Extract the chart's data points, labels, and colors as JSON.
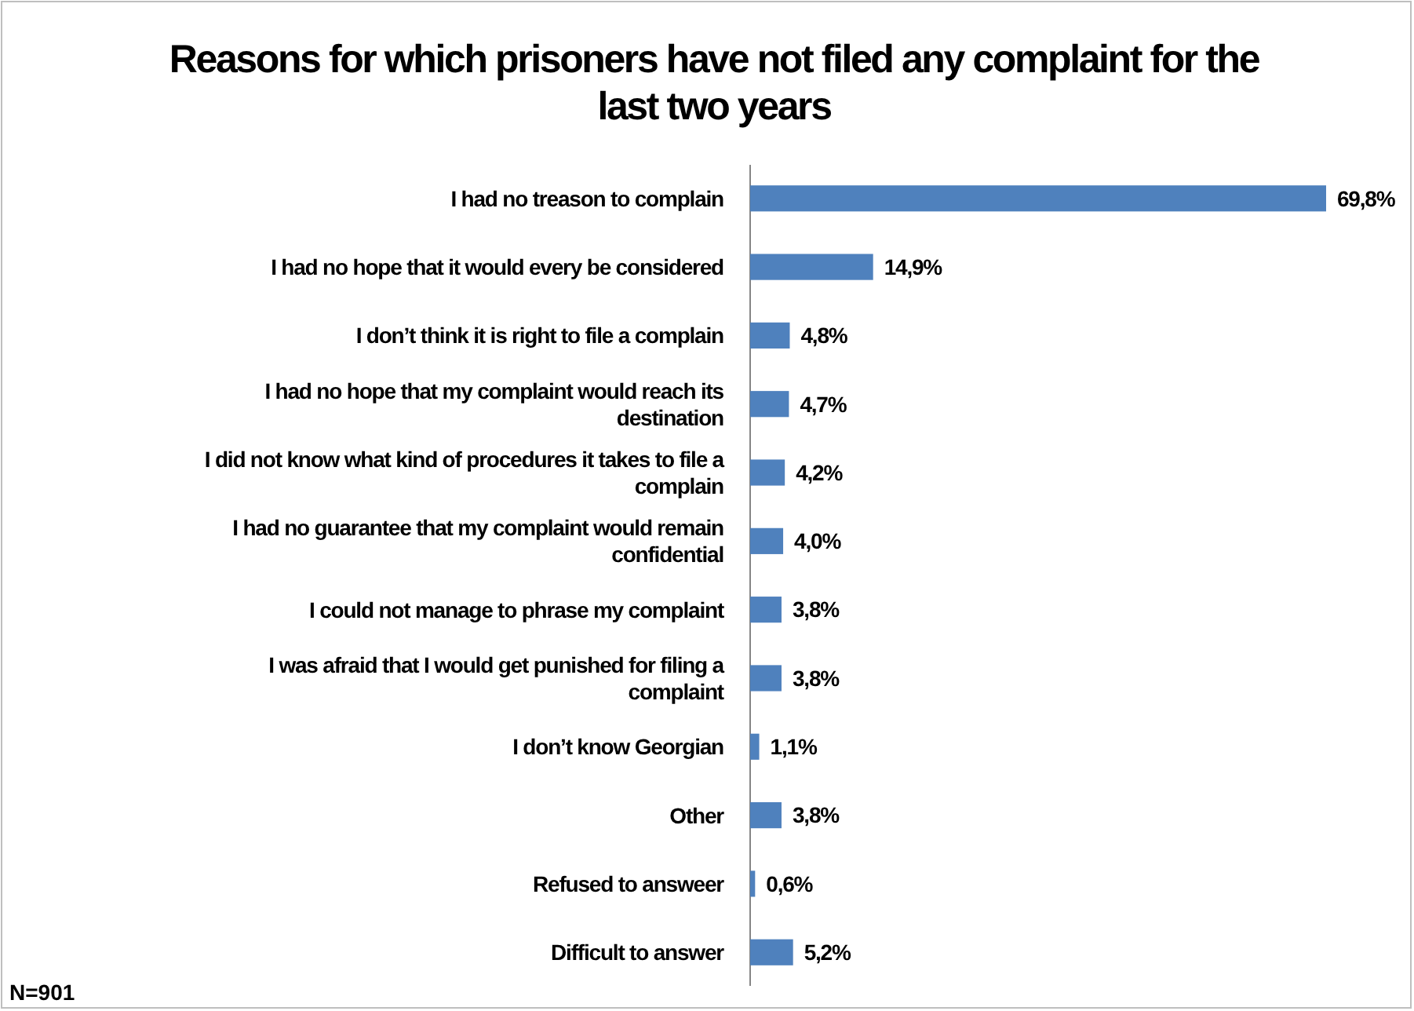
{
  "chart_data": {
    "type": "bar",
    "orientation": "horizontal",
    "title": "Reasons for which prisoners have not filed any complaint for the last two years",
    "categories": [
      "I had no treason to complain",
      "I had no hope that it would every be considered",
      "I don’t think it is right to file a complain",
      "I had no hope that my complaint would reach its destination",
      "I did not know what kind of procedures it takes to file a complain",
      "I had no guarantee that my complaint would remain confidential",
      "I could not manage to phrase my complaint",
      "I was afraid that I would get punished for filing a complaint",
      "I don’t know Georgian",
      "Other",
      "Refused to answeer",
      "Difficult to answer"
    ],
    "values": [
      69.8,
      14.9,
      4.8,
      4.7,
      4.2,
      4.0,
      3.8,
      3.8,
      1.1,
      3.8,
      0.6,
      5.2
    ],
    "value_labels": [
      "69,8%",
      "14,9%",
      "4,8%",
      "4,7%",
      "4,2%",
      "4,0%",
      "3,8%",
      "3,8%",
      "1,1%",
      "3,8%",
      "0,6%",
      "5,2%"
    ],
    "color": "#4f81bd",
    "annotations": [
      "N=901"
    ]
  }
}
